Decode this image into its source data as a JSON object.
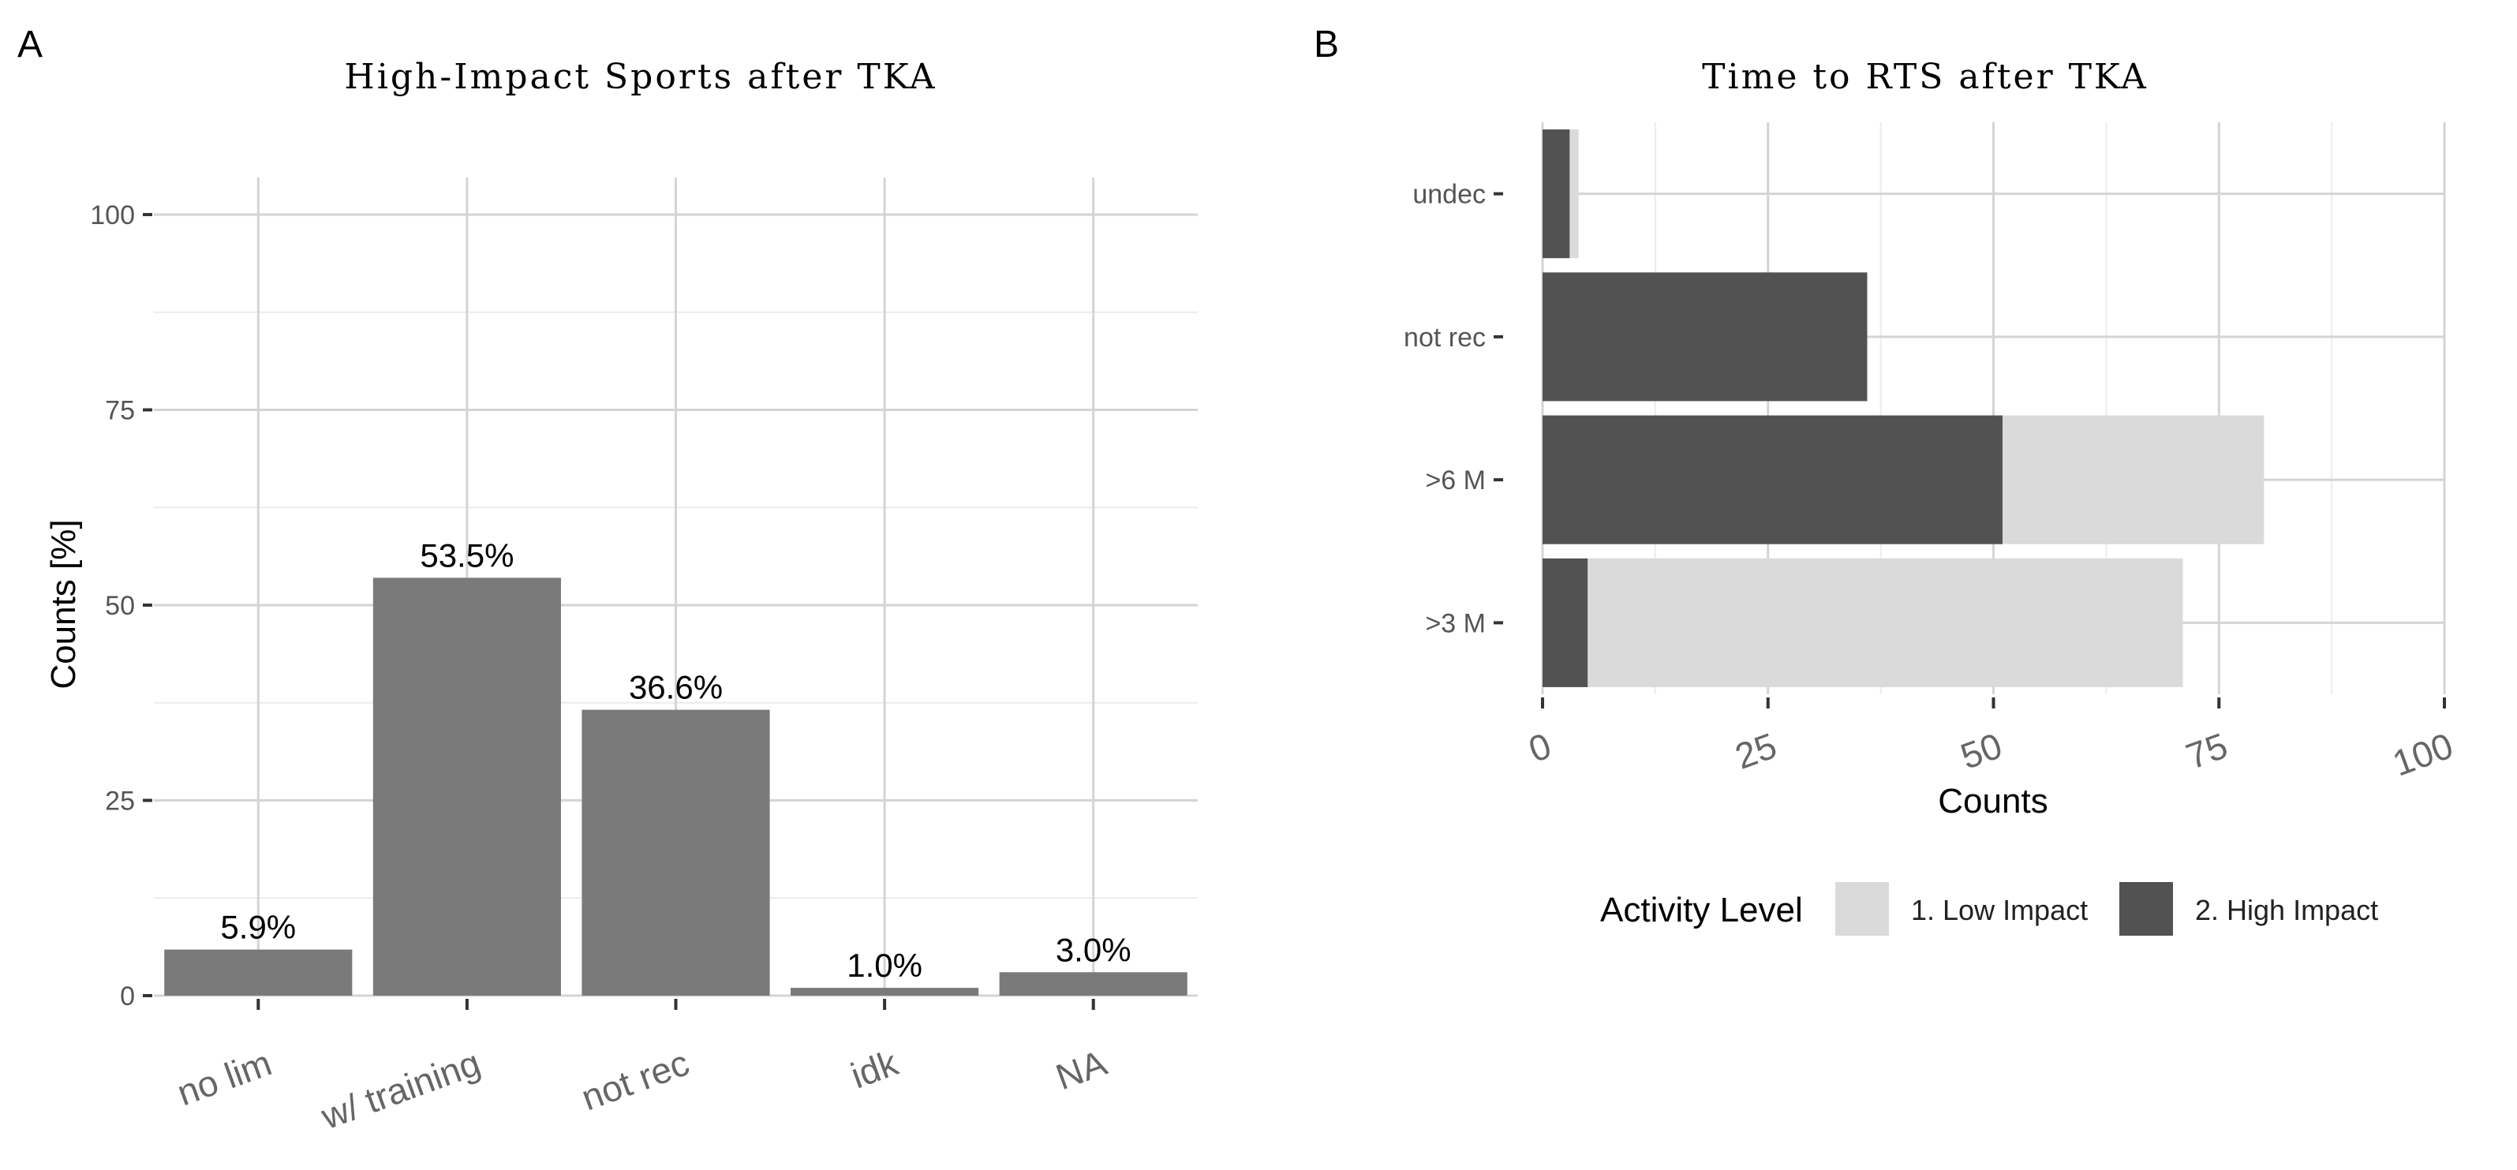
{
  "figure": {
    "panel_a_tag": "A",
    "panel_b_tag": "B"
  },
  "chart_data": [
    {
      "type": "bar",
      "title": "High-Impact Sports after TKA",
      "xlabel": "",
      "ylabel": "Counts [%]",
      "categories": [
        "no lim",
        "w/ training",
        "not rec",
        "idk",
        "NA"
      ],
      "values": [
        5.9,
        53.5,
        36.6,
        1.0,
        3.0
      ],
      "data_labels": [
        "5.9%",
        "53.5%",
        "36.6%",
        "1.0%",
        "3.0%"
      ],
      "ylim": [
        0,
        100
      ],
      "yticks": [
        0,
        25,
        50,
        75,
        100
      ],
      "bar_color": "#7a7a7a",
      "grid": true
    },
    {
      "type": "bar",
      "orientation": "horizontal",
      "stacked": "overlay",
      "title": "Time to RTS after TKA",
      "xlabel": "Counts",
      "ylabel": "",
      "categories": [
        "undec",
        "not rec",
        ">6 M",
        ">3 M"
      ],
      "series": [
        {
          "name": "1. Low Impact",
          "color": "#dadada",
          "values": [
            4,
            0,
            80,
            71
          ]
        },
        {
          "name": "2. High Impact",
          "color": "#525252",
          "values": [
            3,
            36,
            51,
            5
          ]
        }
      ],
      "xlim": [
        0,
        100
      ],
      "xticks": [
        0,
        25,
        50,
        75,
        100
      ],
      "legend_title": "Activity Level",
      "legend_position": "bottom",
      "grid": true
    }
  ]
}
